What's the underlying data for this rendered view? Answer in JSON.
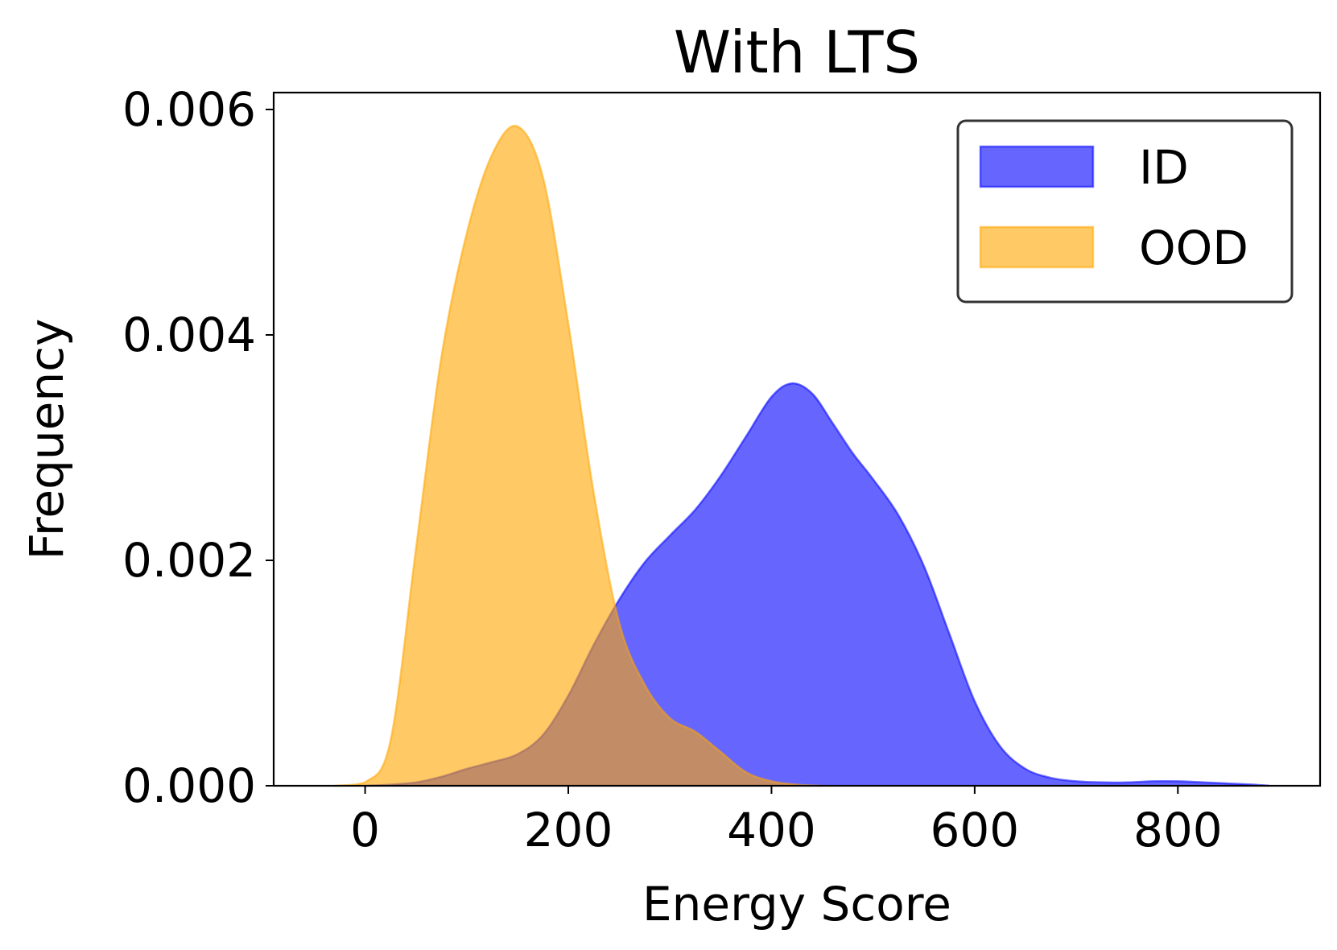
{
  "chart_data": {
    "type": "area",
    "title": "With LTS",
    "xlabel": "Energy Score",
    "ylabel": "Frequency",
    "xlim": [
      -90,
      940
    ],
    "ylim": [
      0,
      0.00615
    ],
    "x_ticks": [
      0,
      200,
      400,
      600,
      800
    ],
    "x_tick_labels": [
      "0",
      "200",
      "400",
      "600",
      "800"
    ],
    "y_ticks": [
      0,
      0.002,
      0.004,
      0.006
    ],
    "y_tick_labels": [
      "0.000",
      "0.002",
      "0.004",
      "0.006"
    ],
    "grid": false,
    "legend_position": "top-right",
    "series": [
      {
        "name": "ID",
        "color": "#0000ff",
        "fill_opacity": 0.6,
        "x": [
          0,
          25,
          50,
          75,
          100,
          125,
          150,
          175,
          200,
          225,
          250,
          275,
          300,
          325,
          350,
          375,
          400,
          420,
          440,
          460,
          480,
          500,
          525,
          550,
          575,
          600,
          625,
          650,
          675,
          700,
          725,
          750,
          775,
          800,
          825,
          850,
          875,
          890
        ],
        "values": [
          0.0,
          1e-05,
          3e-05,
          8e-05,
          0.00015,
          0.00021,
          0.00028,
          0.00045,
          0.0008,
          0.00125,
          0.00165,
          0.00198,
          0.00222,
          0.00245,
          0.00275,
          0.0031,
          0.00345,
          0.00357,
          0.00348,
          0.00322,
          0.00295,
          0.00272,
          0.0024,
          0.00195,
          0.00135,
          0.00075,
          0.00035,
          0.00015,
          7e-05,
          4e-05,
          3e-05,
          3e-05,
          4e-05,
          4e-05,
          3e-05,
          2e-05,
          1e-05,
          0.0
        ]
      },
      {
        "name": "OOD",
        "color": "#ffa500",
        "fill_opacity": 0.6,
        "x": [
          -30,
          0,
          25,
          50,
          75,
          100,
          125,
          150,
          175,
          200,
          225,
          250,
          275,
          300,
          325,
          350,
          375,
          400,
          425,
          450
        ],
        "values": [
          0.0,
          3e-05,
          0.0004,
          0.0021,
          0.0038,
          0.0049,
          0.0056,
          0.00585,
          0.0054,
          0.0041,
          0.0026,
          0.00145,
          0.0009,
          0.0006,
          0.00048,
          0.0003,
          0.00012,
          4e-05,
          1e-05,
          0.0
        ]
      }
    ]
  }
}
